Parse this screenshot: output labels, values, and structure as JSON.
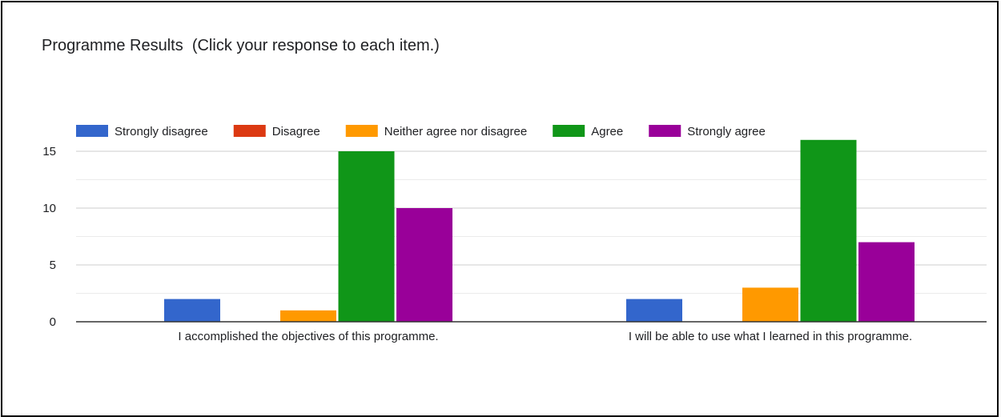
{
  "window": {
    "title": "Programme Results  (Click your response to each item.)"
  },
  "chart_data": {
    "type": "bar",
    "title": "Programme Results  (Click your response to each item.)",
    "categories": [
      "I accomplished the objectives of this programme.",
      "I will be able to use what I learned in this programme."
    ],
    "series": [
      {
        "name": "Strongly disagree",
        "color": "#3366cc",
        "values": [
          2,
          2
        ]
      },
      {
        "name": "Disagree",
        "color": "#dc3912",
        "values": [
          0,
          0
        ]
      },
      {
        "name": "Neither agree nor disagree",
        "color": "#ff9900",
        "values": [
          1,
          3
        ]
      },
      {
        "name": "Agree",
        "color": "#109618",
        "values": [
          15,
          16
        ]
      },
      {
        "name": "Strongly agree",
        "color": "#990099",
        "values": [
          10,
          7
        ]
      }
    ],
    "yticks": [
      0,
      5,
      10,
      15
    ],
    "ylim": [
      0,
      16
    ],
    "xlabel": "",
    "ylabel": "",
    "legend": "top",
    "grid": true
  }
}
